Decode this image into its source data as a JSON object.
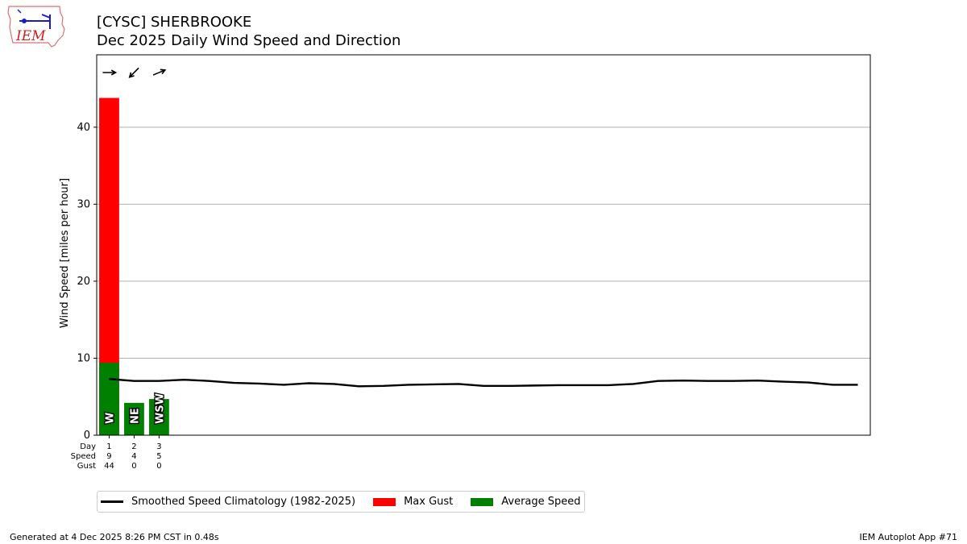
{
  "header": {
    "title_line1": "[CYSC] SHERBROOKE",
    "title_line2": "Dec 2025 Daily Wind Speed and Direction",
    "logo_text": "IEM"
  },
  "chart_data": {
    "type": "bar",
    "title": "[CYSC] SHERBROOKE Dec 2025 Daily Wind Speed and Direction",
    "ylabel": "Wind Speed [miles per hour]",
    "xlabel": "",
    "ylim": [
      0,
      49.4
    ],
    "xlim": [
      0.5,
      31.5
    ],
    "yticks": [
      0,
      10,
      20,
      30,
      40
    ],
    "grid": "horizontal",
    "days": [
      1,
      2,
      3
    ],
    "series": [
      {
        "name": "Max Gust",
        "color": "#ff0000",
        "values": [
          43.8,
          0,
          0
        ]
      },
      {
        "name": "Average Speed",
        "color": "#008000",
        "values": [
          9.4,
          4.2,
          4.7
        ]
      }
    ],
    "direction_labels": [
      "W",
      "NE",
      "WSW"
    ],
    "direction_arrow_degrees": [
      270,
      45,
      247.5
    ],
    "row_labels": [
      "Day",
      "Speed",
      "Gust"
    ],
    "day_row": [
      "1",
      "2",
      "3"
    ],
    "speed_row": [
      "9",
      "4",
      "5"
    ],
    "gust_row": [
      "44",
      "0",
      "0"
    ],
    "climatology": {
      "name": "Smoothed Speed Climatology (1982-2025)",
      "color": "#000000",
      "x": [
        1,
        2,
        3,
        4,
        5,
        6,
        7,
        8,
        9,
        10,
        11,
        12,
        13,
        14,
        15,
        16,
        17,
        18,
        19,
        20,
        21,
        22,
        23,
        24,
        25,
        26,
        27,
        28,
        29,
        30,
        31
      ],
      "values": [
        7.3,
        7.05,
        7.05,
        7.2,
        7.05,
        6.8,
        6.7,
        6.55,
        6.75,
        6.65,
        6.35,
        6.4,
        6.55,
        6.6,
        6.65,
        6.4,
        6.4,
        6.45,
        6.5,
        6.5,
        6.5,
        6.65,
        7.05,
        7.1,
        7.05,
        7.05,
        7.1,
        6.95,
        6.85,
        6.55,
        6.55
      ]
    }
  },
  "legend": {
    "climatology_label": "Smoothed Speed Climatology (1982-2025)",
    "gust_label": "Max Gust",
    "speed_label": "Average Speed",
    "climatology_color": "#000000",
    "gust_color": "#ff0000",
    "speed_color": "#008000"
  },
  "footer": {
    "generated": "Generated at 4 Dec 2025 8:26 PM CST in 0.48s",
    "app": "IEM Autoplot App #71"
  }
}
